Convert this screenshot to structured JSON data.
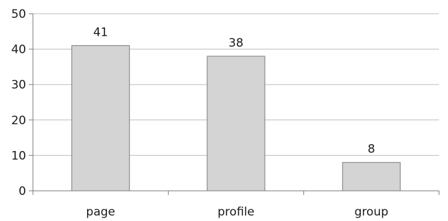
{
  "chart_data": {
    "type": "bar",
    "categories": [
      "page",
      "profile",
      "group"
    ],
    "values": [
      41,
      38,
      8
    ],
    "data_labels": [
      "41",
      "38",
      "8"
    ],
    "ylim": [
      0,
      50
    ],
    "yticks": [
      0,
      10,
      20,
      30,
      40,
      50
    ],
    "ytick_labels": [
      "0",
      "10",
      "20",
      "30",
      "40",
      "50"
    ],
    "grid": true,
    "legend": "none",
    "title": "",
    "xlabel": "",
    "ylabel": "",
    "colors": {
      "bar_fill": "#d4d4d4",
      "bar_stroke": "#7a7a7a",
      "grid": "#bdbdbd",
      "axis": "#7a7a7a"
    }
  }
}
